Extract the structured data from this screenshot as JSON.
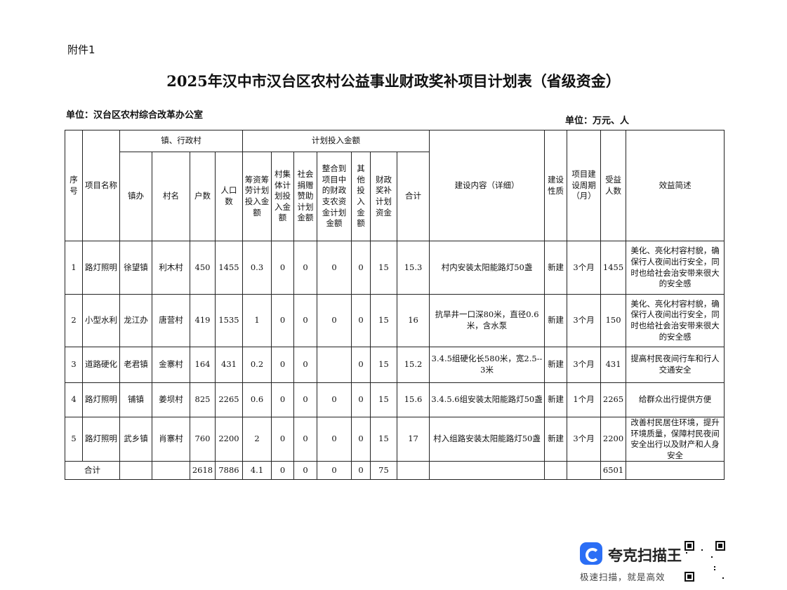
{
  "attachment": "附件1",
  "title": "2025年汉中市汉台区农村公益事业财政奖补项目计划表（省级资金）",
  "unit_left": "单位：汉台区农村综合改革办公室",
  "unit_right": "单位：万元、人",
  "headers": {
    "seq": "序号",
    "name": "项目名称",
    "town_group": "镇、行政村",
    "town": "镇办",
    "village": "村名",
    "households": "户数",
    "population": "人口数",
    "invest_group": "计划投入金额",
    "self_raise": "筹资筹劳计划投入金额",
    "collective": "村集体计划投入金额",
    "social": "社会捐赠赞助计划金额",
    "integrated": "整合到项目中的财政支农资金计划金额",
    "other": "其他投入金额",
    "fiscal": "财政奖补计划资金",
    "total": "合计",
    "content": "建设内容（详细）",
    "nature": "建设性质",
    "period": "项目建设周期（月）",
    "beneficiaries": "受益人数",
    "benefit": "效益简述"
  },
  "rows": [
    {
      "seq": "1",
      "name": "路灯照明",
      "town": "徐望镇",
      "village": "利木村",
      "households": "450",
      "population": "1455",
      "self_raise": "0.3",
      "collective": "0",
      "social": "0",
      "integrated": "0",
      "other": "0",
      "fiscal": "15",
      "total": "15.3",
      "content": "村内安装太阳能路灯50盏",
      "nature": "新建",
      "period": "3个月",
      "beneficiaries": "1455",
      "benefit": "美化、亮化村容村貌，确保行人夜间出行安全，同时也给社会治安带来很大的安全感"
    },
    {
      "seq": "2",
      "name": "小型水利",
      "town": "龙江办",
      "village": "唐营村",
      "households": "419",
      "population": "1535",
      "self_raise": "1",
      "collective": "0",
      "social": "0",
      "integrated": "0",
      "other": "0",
      "fiscal": "15",
      "total": "16",
      "content": "抗旱井一口深80米，直径0.6米，含水泵",
      "nature": "新建",
      "period": "3个月",
      "beneficiaries": "150",
      "benefit": "美化、亮化村容村貌，确保行人夜间出行安全，同时也给社会治安带来很大的安全感"
    },
    {
      "seq": "3",
      "name": "道路硬化",
      "town": "老君镇",
      "village": "金寨村",
      "households": "164",
      "population": "431",
      "self_raise": "0.2",
      "collective": "0",
      "social": "0",
      "integrated": "",
      "other": "0",
      "fiscal": "15",
      "total": "15.2",
      "content": "3.4.5组硬化长580米，宽2.5--3米",
      "nature": "新建",
      "period": "3个月",
      "beneficiaries": "431",
      "benefit": "提高村民夜间行车和行人交通安全"
    },
    {
      "seq": "4",
      "name": "路灯照明",
      "town": "铺镇",
      "village": "姜坝村",
      "households": "825",
      "population": "2265",
      "self_raise": "0.6",
      "collective": "0",
      "social": "0",
      "integrated": "0",
      "other": "0",
      "fiscal": "15",
      "total": "15.6",
      "content": "3.4.5.6组安装太阳能路灯50盏",
      "nature": "新建",
      "period": "1个月",
      "beneficiaries": "2265",
      "benefit": "给群众出行提供方便"
    },
    {
      "seq": "5",
      "name": "路灯照明",
      "town": "武乡镇",
      "village": "肖寨村",
      "households": "760",
      "population": "2200",
      "self_raise": "2",
      "collective": "0",
      "social": "0",
      "integrated": "0",
      "other": "0",
      "fiscal": "15",
      "total": "17",
      "content": "村入组路安装太阳能路灯50盏",
      "nature": "新建",
      "period": "3个月",
      "beneficiaries": "2200",
      "benefit": "改善村民居住环境，提升环境质量，保障村民夜间安全出行以及财产和人身安全"
    }
  ],
  "totals": {
    "label": "合计",
    "households": "2618",
    "population": "7886",
    "self_raise": "4.1",
    "collective": "0",
    "social": "0",
    "integrated": "0",
    "other": "0",
    "fiscal": "75",
    "beneficiaries": "6501"
  },
  "watermark": {
    "brand": "夸克扫描王",
    "slogan": "极速扫描，就是高效",
    "accent": "#2b6ef5"
  }
}
